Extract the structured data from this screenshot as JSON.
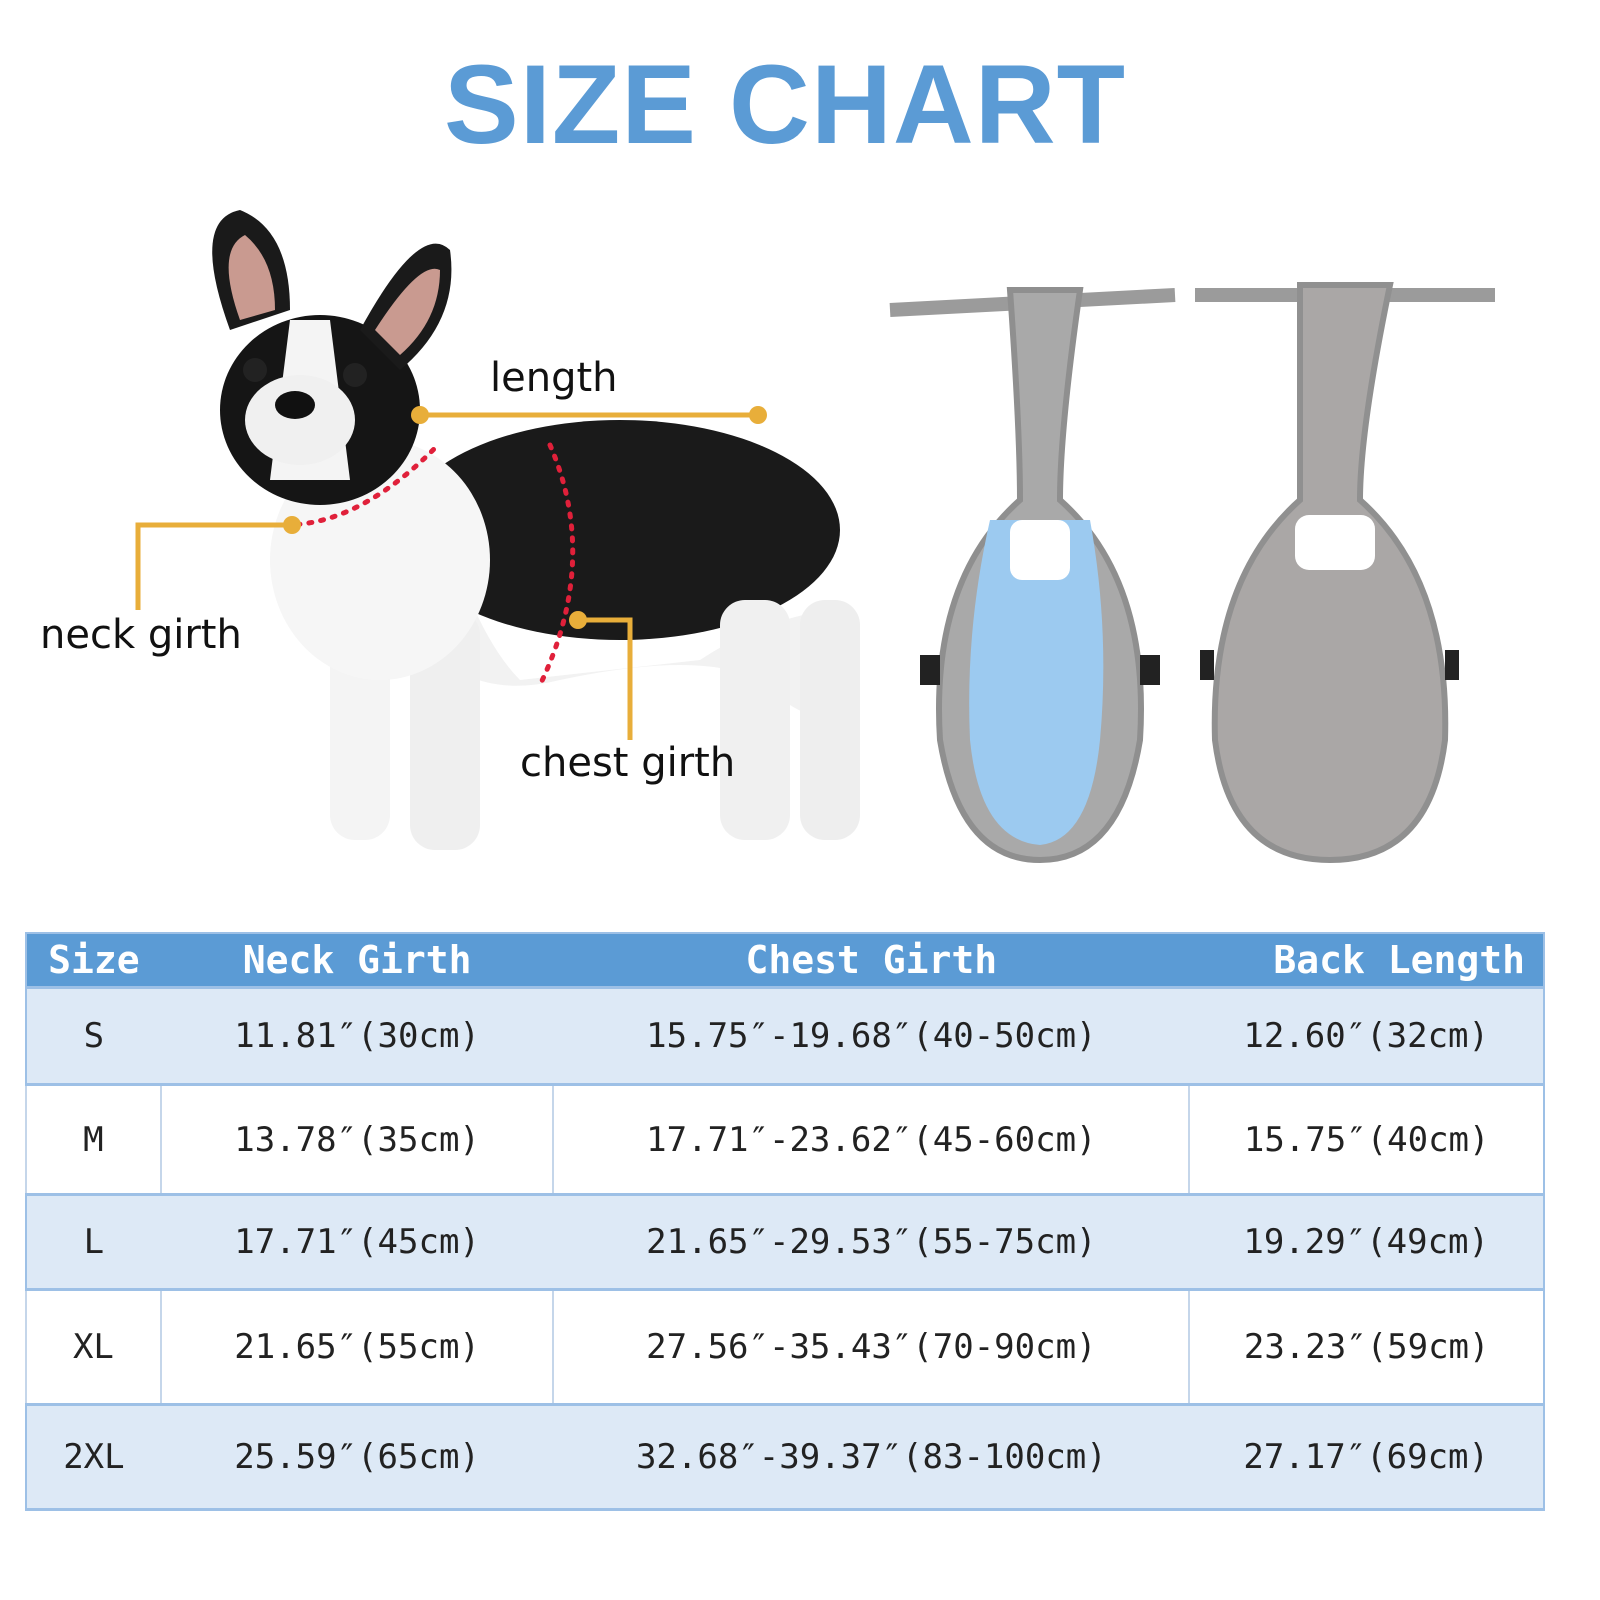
{
  "title": "SIZE CHART",
  "annotations": {
    "length": "length",
    "neck_girth": "neck girth",
    "chest_girth": "chest girth"
  },
  "colors": {
    "title": "#5b9bd5",
    "header": "#5b9bd5",
    "row_light": "#dde9f6",
    "marker": "#e8ae3a",
    "dots": "#e0203a",
    "diaper_blue": "#9ccaf0",
    "diaper_gray": "#a9a9a9"
  },
  "table": {
    "headers": [
      "Size",
      "Neck Girth",
      "Chest Girth",
      "Back Length"
    ],
    "rows": [
      [
        "S",
        "11.81″(30cm)",
        "15.75″-19.68″(40-50cm)",
        "12.60″(32cm)"
      ],
      [
        "M",
        "13.78″(35cm)",
        "17.71″-23.62″(45-60cm)",
        "15.75″(40cm)"
      ],
      [
        "L",
        "17.71″(45cm)",
        "21.65″-29.53″(55-75cm)",
        "19.29″(49cm)"
      ],
      [
        "XL",
        "21.65″(55cm)",
        "27.56″-35.43″(70-90cm)",
        "23.23″(59cm)"
      ],
      [
        "2XL",
        "25.59″(65cm)",
        "32.68″-39.37″(83-100cm)",
        "27.17″(69cm)"
      ]
    ]
  }
}
